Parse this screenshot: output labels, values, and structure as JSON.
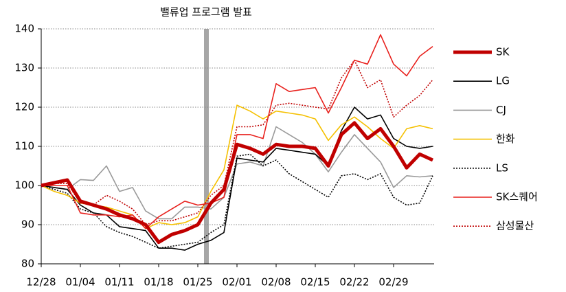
{
  "chart_data": {
    "type": "line",
    "annotation": "밸류업 프로그램 발표",
    "categories": [
      "12/28",
      null,
      null,
      "01/04",
      null,
      null,
      "01/11",
      null,
      null,
      "01/18",
      null,
      null,
      "01/25",
      null,
      null,
      "02/01",
      null,
      null,
      "02/08",
      null,
      null,
      "02/15",
      null,
      null,
      "02/22",
      null,
      null,
      "02/29",
      null,
      null,
      null
    ],
    "ylim": [
      80,
      140
    ],
    "yticks": [
      80,
      90,
      100,
      110,
      120,
      130,
      140
    ],
    "grid": true,
    "series": [
      {
        "name": "SK",
        "color": "#c00000",
        "style": "thick",
        "values": [
          100,
          100.7,
          101.4,
          96,
          95,
          94,
          92.5,
          91.5,
          90,
          85.5,
          87.5,
          88.5,
          90,
          95.5,
          99,
          110.5,
          109.5,
          108,
          110.5,
          110,
          110,
          109.5,
          105,
          113,
          116,
          112,
          114.5,
          110,
          104.5,
          108,
          106.5
        ]
      },
      {
        "name": "LG",
        "color": "#000000",
        "style": "solid",
        "values": [
          100,
          99.5,
          99,
          95,
          93,
          92.5,
          89.5,
          89,
          88.5,
          84,
          84,
          83.5,
          85,
          86,
          88,
          107,
          106.5,
          106,
          109.5,
          109,
          108.5,
          108,
          105,
          114,
          120,
          117,
          118,
          112,
          110,
          109.5,
          110
        ]
      },
      {
        "name": "CJ",
        "color": "#999999",
        "style": "solid",
        "values": [
          100,
          99.5,
          99,
          101.5,
          101.3,
          105,
          98.5,
          99.5,
          93.5,
          91.5,
          91.5,
          94.5,
          94.5,
          94,
          97,
          105.5,
          106,
          105,
          115,
          113,
          111,
          108,
          103.5,
          108.5,
          113,
          109.5,
          106,
          99.5,
          102.5,
          102.2,
          102.5
        ]
      },
      {
        "name": "한화",
        "color": "#f5c000",
        "style": "solid",
        "values": [
          100,
          98.5,
          97.5,
          95.5,
          95,
          94.5,
          93.5,
          92.5,
          89,
          90.5,
          90,
          90.5,
          92,
          98.5,
          104,
          120.5,
          119,
          117,
          119,
          118.5,
          118,
          117,
          111.5,
          115.5,
          117.5,
          115,
          112,
          109.5,
          114.5,
          115.3,
          114.5
        ]
      },
      {
        "name": "LS",
        "color": "#000000",
        "style": "dotted",
        "values": [
          100,
          99,
          98,
          94,
          93,
          89.5,
          88,
          87,
          85.5,
          84,
          84.5,
          85,
          85.5,
          88,
          90,
          107.5,
          108,
          105,
          106.5,
          103,
          101,
          99,
          97,
          102.5,
          103,
          101.5,
          103,
          97,
          95,
          95.5,
          102.5
        ]
      },
      {
        "name": "SK스퀘어",
        "color": "#e8211d",
        "style": "solid",
        "values": [
          100,
          100,
          100,
          93,
          92.5,
          92.5,
          92,
          92.5,
          89,
          92,
          94,
          96,
          95,
          95.5,
          97,
          113,
          113,
          112,
          126,
          124,
          124.5,
          125,
          118.5,
          125,
          132,
          131,
          138.5,
          131,
          128,
          133,
          135.5
        ]
      },
      {
        "name": "삼성물산",
        "color": "#c00000",
        "style": "dotted",
        "values": [
          100,
          100.5,
          100.5,
          95.5,
          95,
          97.5,
          96,
          94,
          90,
          91,
          91,
          92,
          93,
          97.5,
          100,
          115,
          115,
          115.5,
          120.5,
          121,
          120.5,
          120,
          119.5,
          127.5,
          132,
          125,
          127,
          117.5,
          120.5,
          123,
          127
        ]
      }
    ]
  }
}
